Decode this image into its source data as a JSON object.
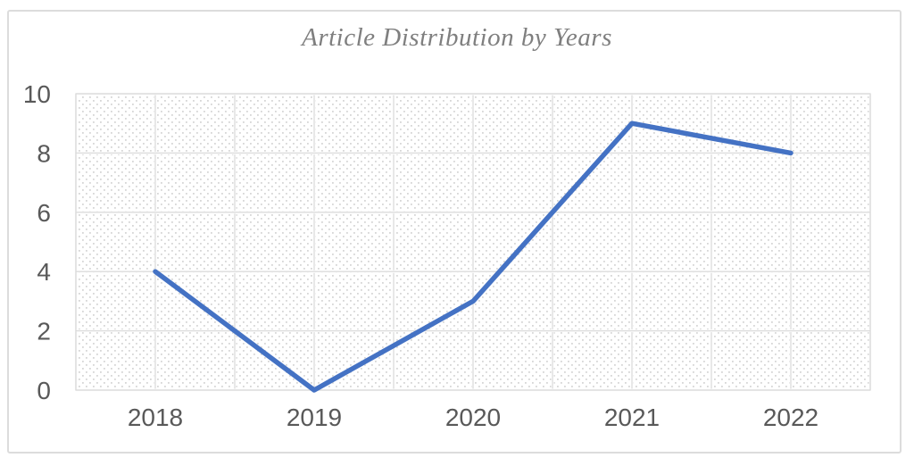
{
  "chart_data": {
    "type": "line",
    "title": "Article Distribution by Years",
    "categories": [
      "2018",
      "2019",
      "2020",
      "2021",
      "2022"
    ],
    "values": [
      4,
      0,
      3,
      9,
      8
    ],
    "xlabel": "",
    "ylabel": "",
    "ylim": [
      0,
      10
    ],
    "yticks": [
      0,
      2,
      4,
      6,
      8,
      10
    ],
    "legend_position": "none",
    "grid": "horizontal gridlines at each y tick; vertical gridlines at half-category intervals",
    "plot_background": "light downward-diagonal dotted hatch pattern",
    "line_style": "solid, no markers, round joins",
    "colors": {
      "line": "#4472C4",
      "gridline": "#dbdbdb",
      "gridline_halo": "#ffffff",
      "hatch_dot": "#d6d6d6",
      "tick_label": "#595959",
      "title": "#7f7f7f",
      "frame_border": "#dcdcdc",
      "background": "#ffffff"
    }
  }
}
